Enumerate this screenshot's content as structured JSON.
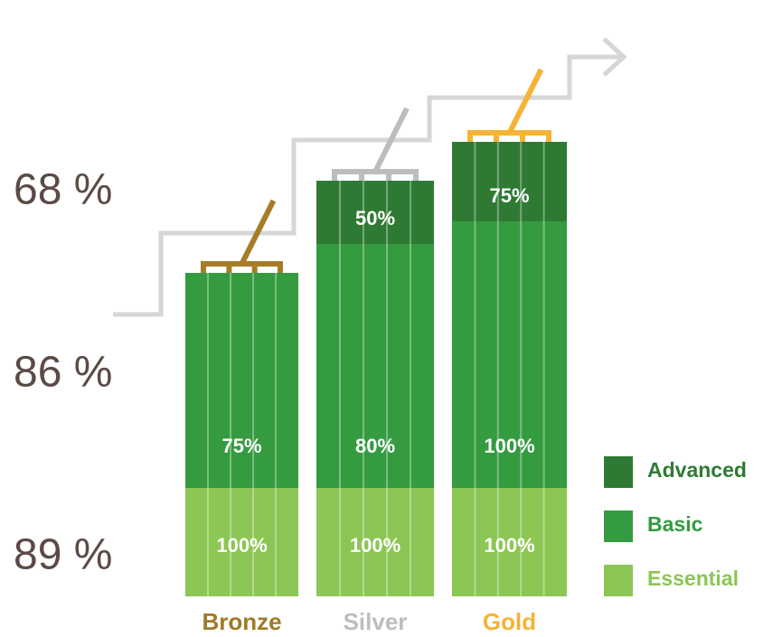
{
  "side_labels": [
    "68 %",
    "86 %",
    "89 %"
  ],
  "tiers": [
    {
      "name": "Bronze",
      "basic": "75%",
      "essential": "100%"
    },
    {
      "name": "Silver",
      "advanced": "50%",
      "basic": "80%",
      "essential": "100%"
    },
    {
      "name": "Gold",
      "advanced": "75%",
      "basic": "100%",
      "essential": "100%"
    }
  ],
  "legend": [
    "Advanced",
    "Basic",
    "Essential"
  ]
}
